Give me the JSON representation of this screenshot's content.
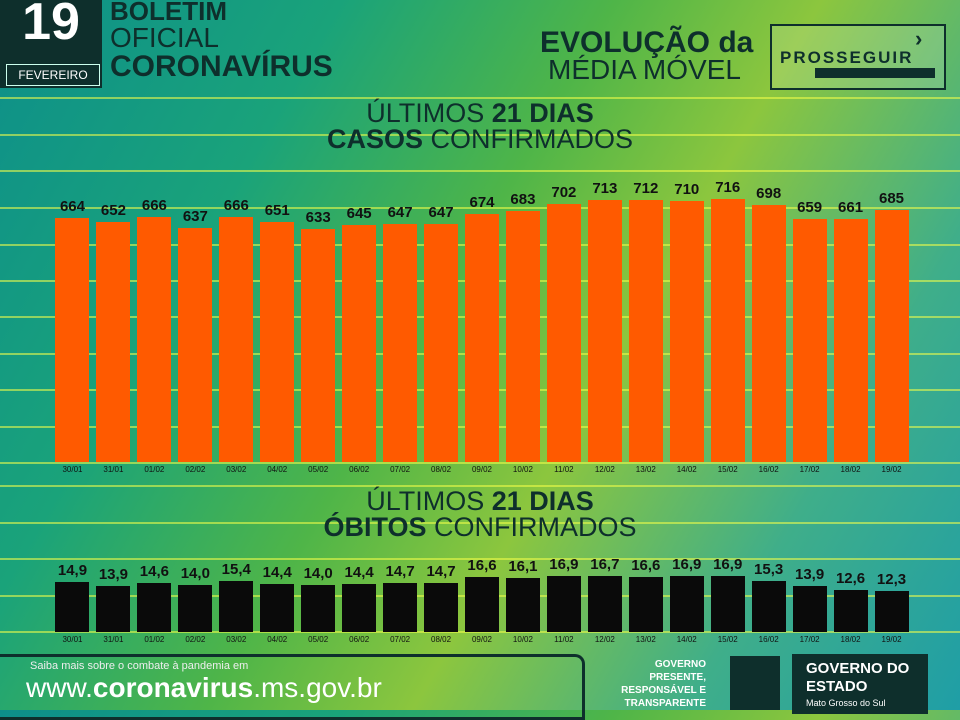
{
  "header": {
    "day": "19",
    "month": "FEVEREIRO",
    "boletim": "BOLETIM",
    "oficial": "OFICIAL",
    "coronavirus": "CORONAVÍRUS",
    "evolucao": "EVOLUÇÃO da",
    "media_movel": "MÉDIA MÓVEL",
    "prosseguir": "PROSSEGUIR"
  },
  "chart_data": [
    {
      "type": "bar",
      "title_line1_pre": "ÚLTIMOS ",
      "title_line1_bold": "21 DIAS",
      "title_line2_bold": "CASOS",
      "title_line2_rest": " CONFIRMADOS",
      "color": "#ff5a00",
      "categories": [
        "30/01",
        "31/01",
        "01/02",
        "02/02",
        "03/02",
        "04/02",
        "05/02",
        "06/02",
        "07/02",
        "08/02",
        "09/02",
        "10/02",
        "11/02",
        "12/02",
        "13/02",
        "14/02",
        "15/02",
        "16/02",
        "17/02",
        "18/02",
        "19/02"
      ],
      "values": [
        664,
        652,
        666,
        637,
        666,
        651,
        633,
        645,
        647,
        647,
        674,
        683,
        702,
        713,
        712,
        710,
        716,
        698,
        659,
        661,
        685
      ],
      "value_labels": [
        "664",
        "652",
        "666",
        "637",
        "666",
        "651",
        "633",
        "645",
        "647",
        "647",
        "674",
        "683",
        "702",
        "713",
        "712",
        "710",
        "716",
        "698",
        "659",
        "661",
        "685"
      ],
      "ylim": [
        0,
        750
      ]
    },
    {
      "type": "bar",
      "title_line1_pre": "ÚLTIMOS ",
      "title_line1_bold": "21 DIAS",
      "title_line2_bold": "ÓBITOS",
      "title_line2_rest": " CONFIRMADOS",
      "color": "#0a0a0a",
      "categories": [
        "30/01",
        "31/01",
        "01/02",
        "02/02",
        "03/02",
        "04/02",
        "05/02",
        "06/02",
        "07/02",
        "08/02",
        "09/02",
        "10/02",
        "11/02",
        "12/02",
        "13/02",
        "14/02",
        "15/02",
        "16/02",
        "17/02",
        "18/02",
        "19/02"
      ],
      "values": [
        14.9,
        13.9,
        14.6,
        14.0,
        15.4,
        14.4,
        14.0,
        14.4,
        14.7,
        14.7,
        16.6,
        16.1,
        16.9,
        16.7,
        16.6,
        16.9,
        16.9,
        15.3,
        13.9,
        12.6,
        12.3
      ],
      "value_labels": [
        "14,9",
        "13,9",
        "14,6",
        "14,0",
        "15,4",
        "14,4",
        "14,0",
        "14,4",
        "14,7",
        "14,7",
        "16,6",
        "16,1",
        "16,9",
        "16,7",
        "16,6",
        "16,9",
        "16,9",
        "15,3",
        "13,9",
        "12,6",
        "12,3"
      ],
      "ylim": [
        0,
        18
      ]
    }
  ],
  "footer": {
    "small": "Saiba mais sobre o combate à pandemia em",
    "url_pre": "www.",
    "url_bold": "coronavirus",
    "url_post": ".ms.gov.br",
    "gov_text": "GOVERNO PRESENTE, RESPONSÁVEL E TRANSPARENTE",
    "gov2": "GOVERNO DO ESTADO",
    "gov2_sub": "Mato Grosso do Sul"
  }
}
